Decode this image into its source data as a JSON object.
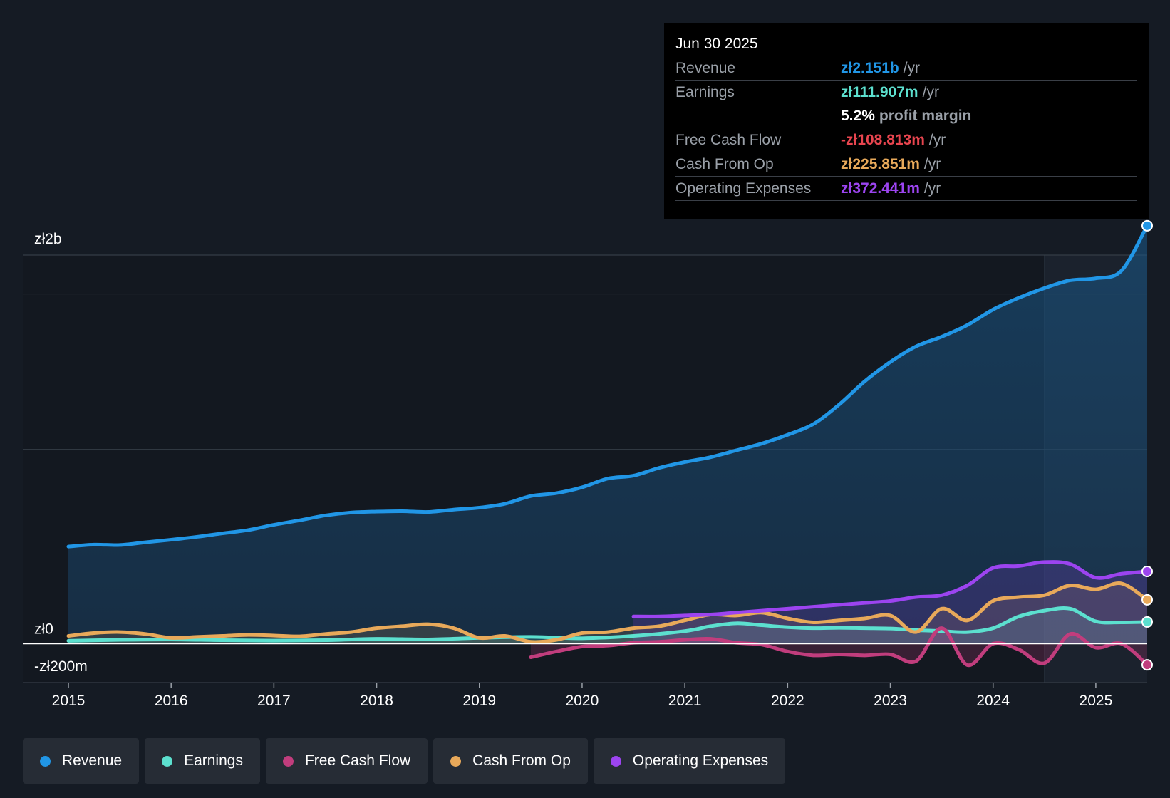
{
  "colors": {
    "revenue": "#2196e6",
    "earnings": "#5ce0cf",
    "fcf": "#c13d7d",
    "cfo": "#e8a95a",
    "opex": "#9c44f0",
    "background": "#151b24"
  },
  "tooltip": {
    "date": "Jun 30 2025",
    "revenue_label": "Revenue",
    "revenue_value": "zł2.151b",
    "earnings_label": "Earnings",
    "earnings_value": "zł111.907m",
    "margin_value": "5.2%",
    "margin_text": "profit margin",
    "fcf_label": "Free Cash Flow",
    "fcf_value": "-zł108.813m",
    "cfo_label": "Cash From Op",
    "cfo_value": "zł225.851m",
    "opex_label": "Operating Expenses",
    "opex_value": "zł372.441m",
    "unit": "/yr"
  },
  "legend": [
    {
      "label": "Revenue",
      "color": "#2196e6"
    },
    {
      "label": "Earnings",
      "color": "#5ce0cf"
    },
    {
      "label": "Free Cash Flow",
      "color": "#c13d7d"
    },
    {
      "label": "Cash From Op",
      "color": "#e8a95a"
    },
    {
      "label": "Operating Expenses",
      "color": "#9c44f0"
    }
  ],
  "chart_data": {
    "type": "area",
    "title": "",
    "xlabel": "",
    "ylabel": "",
    "ylim": [
      -200,
      2000
    ],
    "xlim": [
      2015,
      2025.5
    ],
    "y_ticks": [
      {
        "value": 2000,
        "label": "zł2b"
      },
      {
        "value": 0,
        "label": "zł0"
      },
      {
        "value": -200,
        "label": "-zł200m"
      }
    ],
    "x_ticks": [
      "2015",
      "2016",
      "2017",
      "2018",
      "2019",
      "2020",
      "2021",
      "2022",
      "2023",
      "2024",
      "2025"
    ],
    "highlight_start": 2024.5,
    "series": [
      {
        "name": "Revenue",
        "key": "revenue",
        "x": [
          2015,
          2015.25,
          2015.5,
          2015.75,
          2016,
          2016.25,
          2016.5,
          2016.75,
          2017,
          2017.25,
          2017.5,
          2017.75,
          2018,
          2018.25,
          2018.5,
          2018.75,
          2019,
          2019.25,
          2019.5,
          2019.75,
          2020,
          2020.25,
          2020.5,
          2020.75,
          2021,
          2021.25,
          2021.5,
          2021.75,
          2022,
          2022.25,
          2022.5,
          2022.75,
          2023,
          2023.25,
          2023.5,
          2023.75,
          2024,
          2024.25,
          2024.5,
          2024.75,
          2025,
          2025.25,
          2025.5
        ],
        "values": [
          500,
          510,
          508,
          522,
          535,
          550,
          568,
          585,
          612,
          635,
          660,
          675,
          680,
          682,
          678,
          690,
          700,
          720,
          760,
          775,
          805,
          850,
          865,
          905,
          935,
          960,
          995,
          1030,
          1075,
          1130,
          1230,
          1350,
          1450,
          1530,
          1580,
          1640,
          1720,
          1780,
          1830,
          1870,
          1880,
          1920,
          2151
        ]
      },
      {
        "name": "Earnings",
        "key": "earnings",
        "x": [
          2015,
          2015.5,
          2016,
          2016.5,
          2017,
          2017.5,
          2018,
          2018.5,
          2019,
          2019.5,
          2020,
          2020.5,
          2021,
          2021.25,
          2021.5,
          2021.75,
          2022,
          2022.25,
          2022.5,
          2022.75,
          2023,
          2023.25,
          2023.5,
          2023.75,
          2024,
          2024.25,
          2024.5,
          2024.75,
          2025,
          2025.25,
          2025.5
        ],
        "values": [
          15,
          20,
          22,
          18,
          16,
          18,
          25,
          22,
          30,
          35,
          28,
          40,
          65,
          90,
          105,
          95,
          85,
          80,
          82,
          80,
          78,
          70,
          65,
          60,
          80,
          140,
          170,
          180,
          115,
          110,
          112
        ]
      },
      {
        "name": "Free Cash Flow",
        "key": "fcf",
        "x": [
          2019.5,
          2019.75,
          2020,
          2020.25,
          2020.5,
          2020.75,
          2021,
          2021.25,
          2021.5,
          2021.75,
          2022,
          2022.25,
          2022.5,
          2022.75,
          2023,
          2023.25,
          2023.5,
          2023.75,
          2024,
          2024.25,
          2024.5,
          2024.75,
          2025,
          2025.25,
          2025.5
        ],
        "values": [
          -70,
          -40,
          -15,
          -10,
          5,
          10,
          20,
          25,
          5,
          -5,
          -40,
          -60,
          -55,
          -60,
          -55,
          -90,
          80,
          -110,
          0,
          -30,
          -100,
          50,
          -20,
          0,
          -109
        ]
      },
      {
        "name": "Cash From Op",
        "key": "cfo",
        "x": [
          2015,
          2015.25,
          2015.5,
          2015.75,
          2016,
          2016.25,
          2016.5,
          2016.75,
          2017,
          2017.25,
          2017.5,
          2017.75,
          2018,
          2018.25,
          2018.5,
          2018.75,
          2019,
          2019.25,
          2019.5,
          2019.75,
          2020,
          2020.25,
          2020.5,
          2020.75,
          2021,
          2021.25,
          2021.5,
          2021.75,
          2022,
          2022.25,
          2022.5,
          2022.75,
          2023,
          2023.25,
          2023.5,
          2023.75,
          2024,
          2024.25,
          2024.5,
          2024.75,
          2025,
          2025.25,
          2025.5
        ],
        "values": [
          40,
          55,
          60,
          50,
          30,
          35,
          40,
          45,
          42,
          38,
          50,
          60,
          80,
          90,
          100,
          80,
          30,
          40,
          10,
          20,
          55,
          60,
          80,
          90,
          120,
          150,
          145,
          160,
          130,
          110,
          120,
          130,
          145,
          60,
          180,
          120,
          220,
          240,
          250,
          300,
          280,
          310,
          226
        ]
      },
      {
        "name": "Operating Expenses",
        "key": "opex",
        "x": [
          2020.5,
          2020.75,
          2021,
          2021.25,
          2021.5,
          2021.75,
          2022,
          2022.25,
          2022.5,
          2022.75,
          2023,
          2023.25,
          2023.5,
          2023.75,
          2024,
          2024.25,
          2024.5,
          2024.75,
          2025,
          2025.25,
          2025.5
        ],
        "values": [
          140,
          140,
          145,
          150,
          160,
          170,
          180,
          190,
          200,
          210,
          220,
          240,
          250,
          300,
          390,
          400,
          420,
          410,
          340,
          360,
          372
        ]
      }
    ]
  }
}
